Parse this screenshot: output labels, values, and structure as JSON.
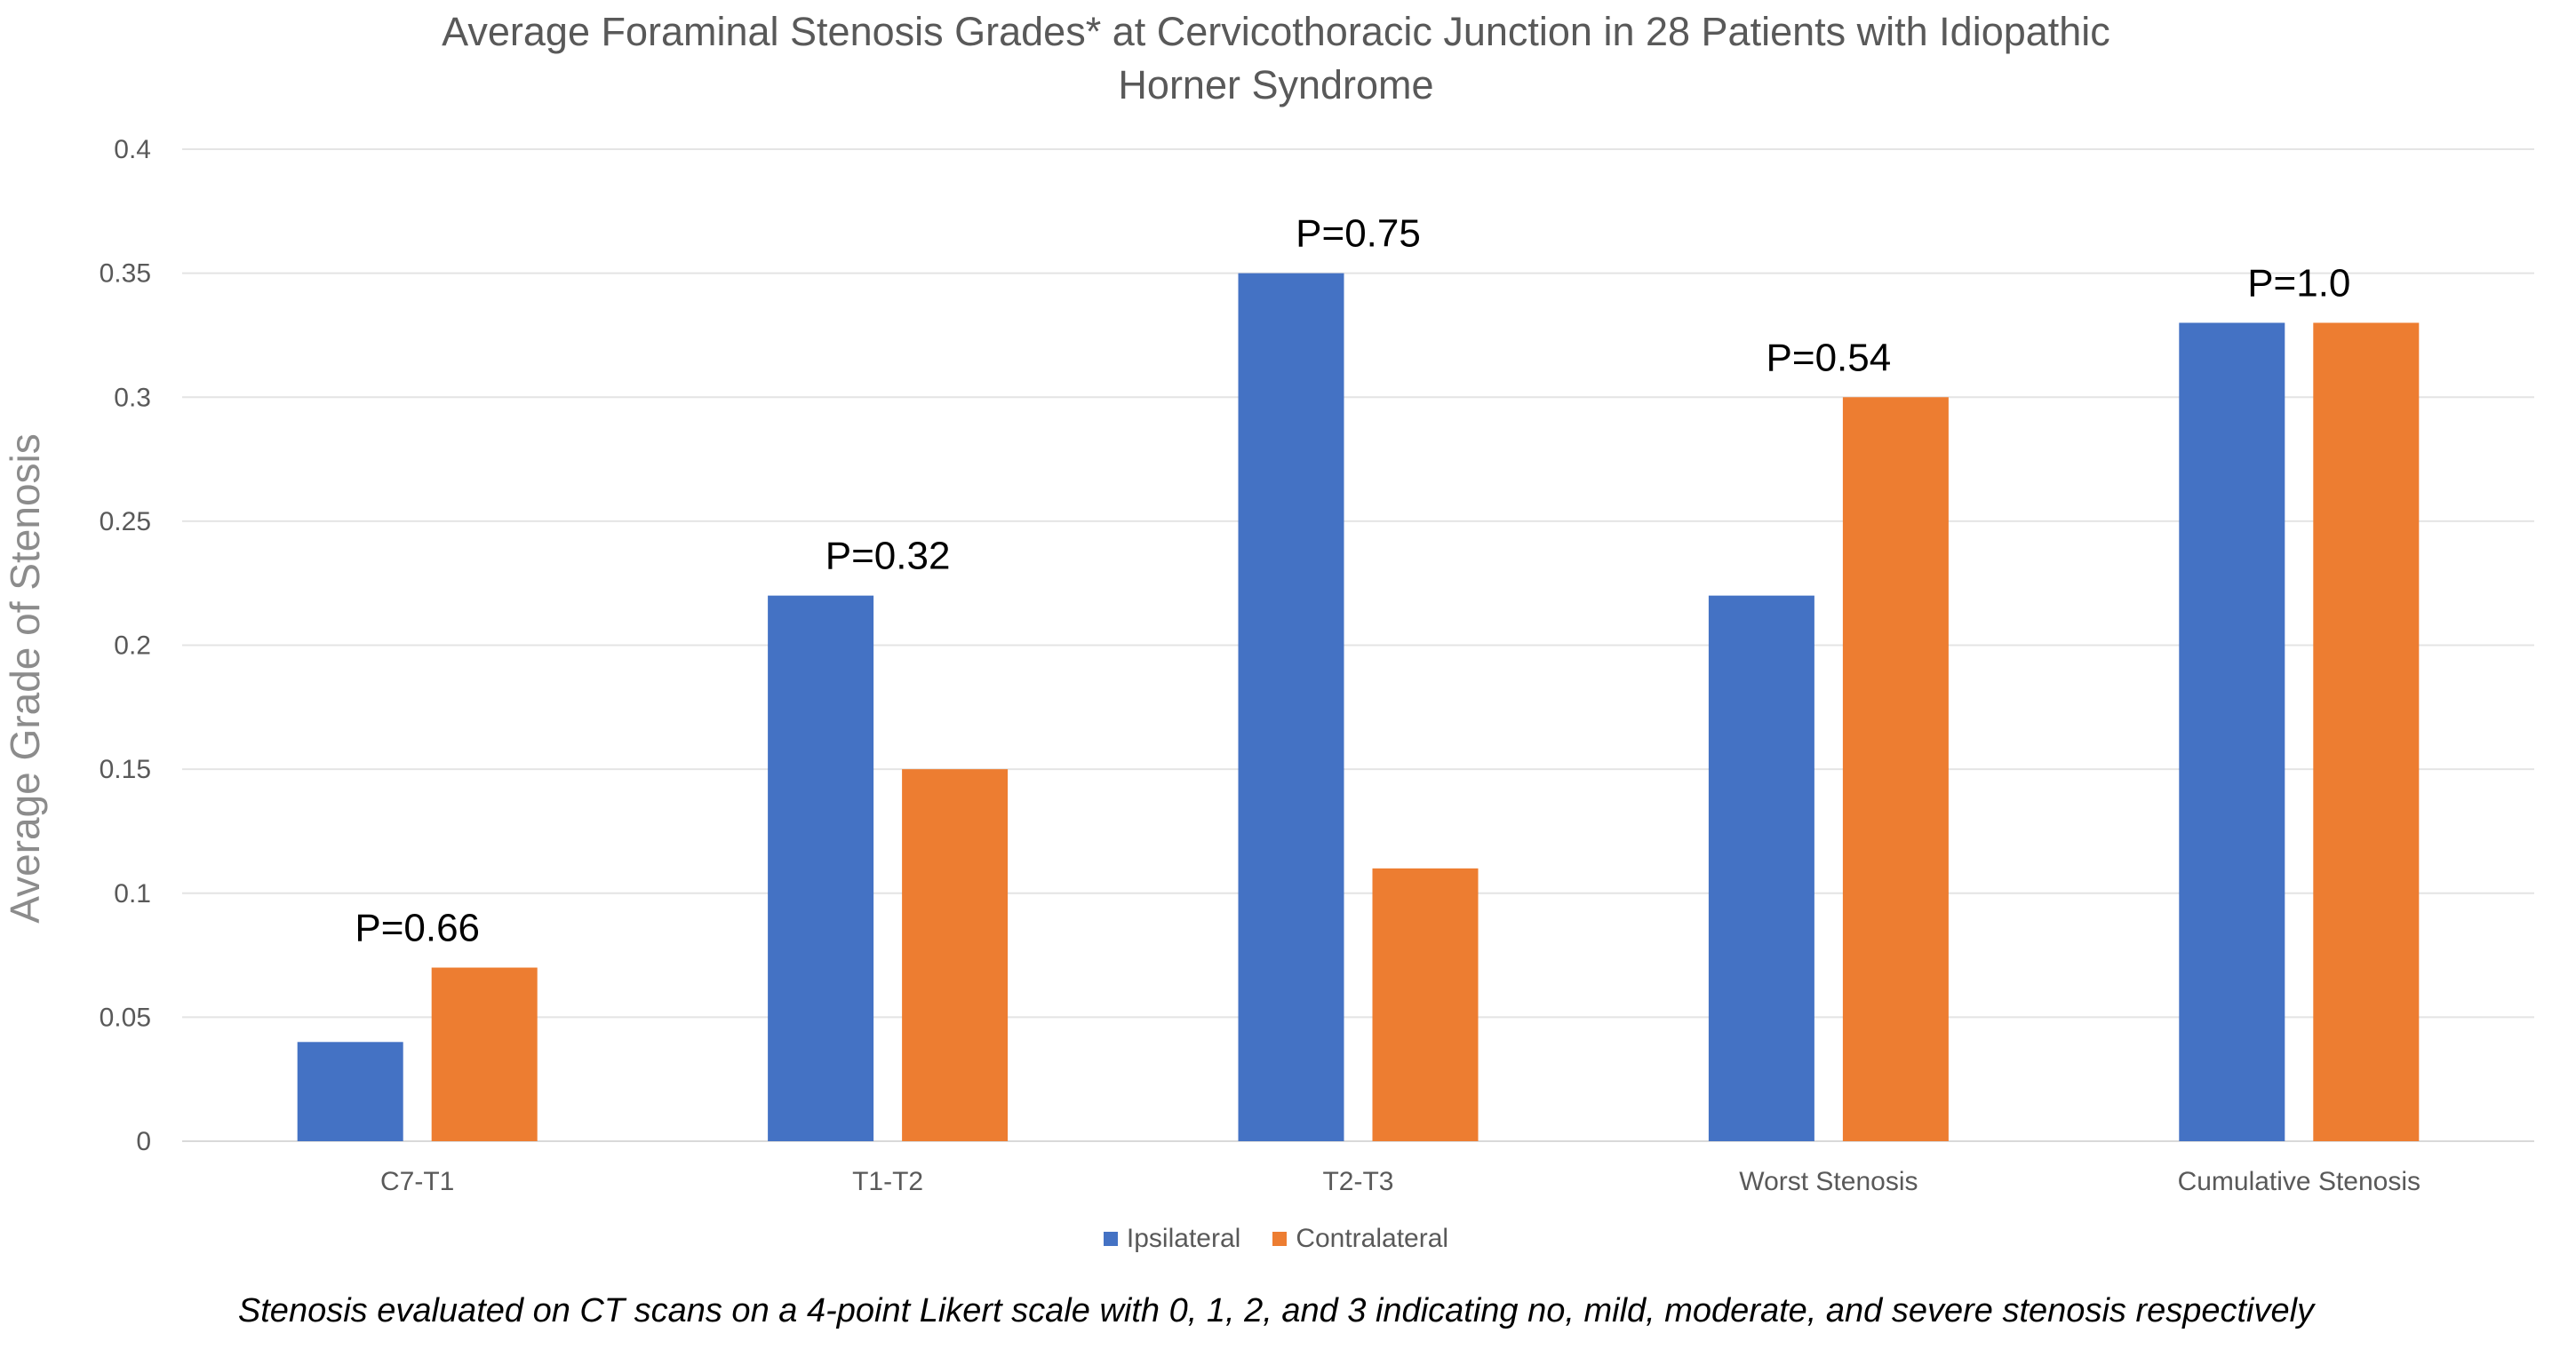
{
  "chart_data": {
    "type": "bar",
    "title_line1": "Average Foraminal Stenosis Grades* at Cervicothoracic Junction in 28 Patients with Idiopathic",
    "title_line2": "Horner Syndrome",
    "xlabel": "",
    "ylabel": "Average Grade of Stenosis",
    "ylim": [
      0,
      0.4
    ],
    "yticks": [
      "0",
      "0.05",
      "0.1",
      "0.15",
      "0.2",
      "0.25",
      "0.3",
      "0.35",
      "0.4"
    ],
    "grid": true,
    "categories": [
      "C7-T1",
      "T1-T2",
      "T2-T3",
      "Worst Stenosis",
      "Cumulative Stenosis"
    ],
    "series": [
      {
        "name": "Ipsilateral",
        "color": "#4472c4",
        "values": [
          0.04,
          0.22,
          0.35,
          0.22,
          0.33
        ]
      },
      {
        "name": "Contralateral",
        "color": "#ed7d31",
        "values": [
          0.07,
          0.15,
          0.11,
          0.3,
          0.33
        ]
      }
    ],
    "annotations": [
      "P=0.66",
      "P=0.32",
      "P=0.75",
      "P=0.54",
      "P=1.0"
    ],
    "legend_position": "bottom",
    "footnote": "Stenosis evaluated on CT scans on a 4-point Likert scale with 0, 1, 2, and 3 indicating no, mild, moderate, and severe stenosis respectively"
  }
}
